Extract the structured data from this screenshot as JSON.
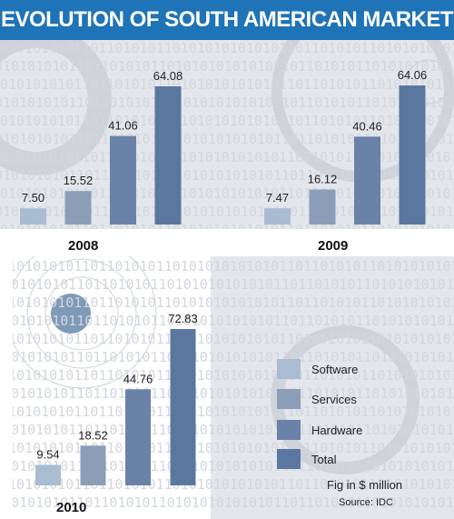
{
  "title": "EVOLUTION OF SOUTH AMERICAN MARKET",
  "note": "Fig in $ million",
  "source": "Source: IDC",
  "legend": {
    "items": [
      {
        "label": "Software",
        "color": "#aabcd2"
      },
      {
        "label": "Services",
        "color": "#8c9db8"
      },
      {
        "label": "Hardware",
        "color": "#6a82a8"
      },
      {
        "label": "Total",
        "color": "#5a77a0"
      }
    ]
  },
  "chart_data": [
    {
      "type": "bar",
      "title": "2008",
      "categories": [
        "Software",
        "Services",
        "Hardware",
        "Total"
      ],
      "values": [
        7.5,
        15.52,
        41.06,
        64.08
      ],
      "value_labels": [
        "7.50",
        "15.52",
        "41.06",
        "64.08"
      ],
      "xlabel": "",
      "ylabel": "",
      "ylim": [
        0,
        64.08
      ],
      "grid": false,
      "legend": "bottom-right"
    },
    {
      "type": "bar",
      "title": "2009",
      "categories": [
        "Software",
        "Services",
        "Hardware",
        "Total"
      ],
      "values": [
        7.47,
        16.12,
        40.46,
        64.06
      ],
      "value_labels": [
        "7.47",
        "16.12",
        "40.46",
        "64.06"
      ],
      "xlabel": "",
      "ylabel": "",
      "ylim": [
        0,
        64.06
      ],
      "grid": false,
      "legend": "bottom-right"
    },
    {
      "type": "bar",
      "title": "2010",
      "categories": [
        "Software",
        "Services",
        "Hardware",
        "Total"
      ],
      "values": [
        9.54,
        18.52,
        44.76,
        72.83
      ],
      "value_labels": [
        "9.54",
        "18.52",
        "44.76",
        "72.83"
      ],
      "xlabel": "",
      "ylabel": "",
      "ylim": [
        0,
        72.83
      ],
      "grid": false,
      "legend": "bottom-right"
    }
  ]
}
